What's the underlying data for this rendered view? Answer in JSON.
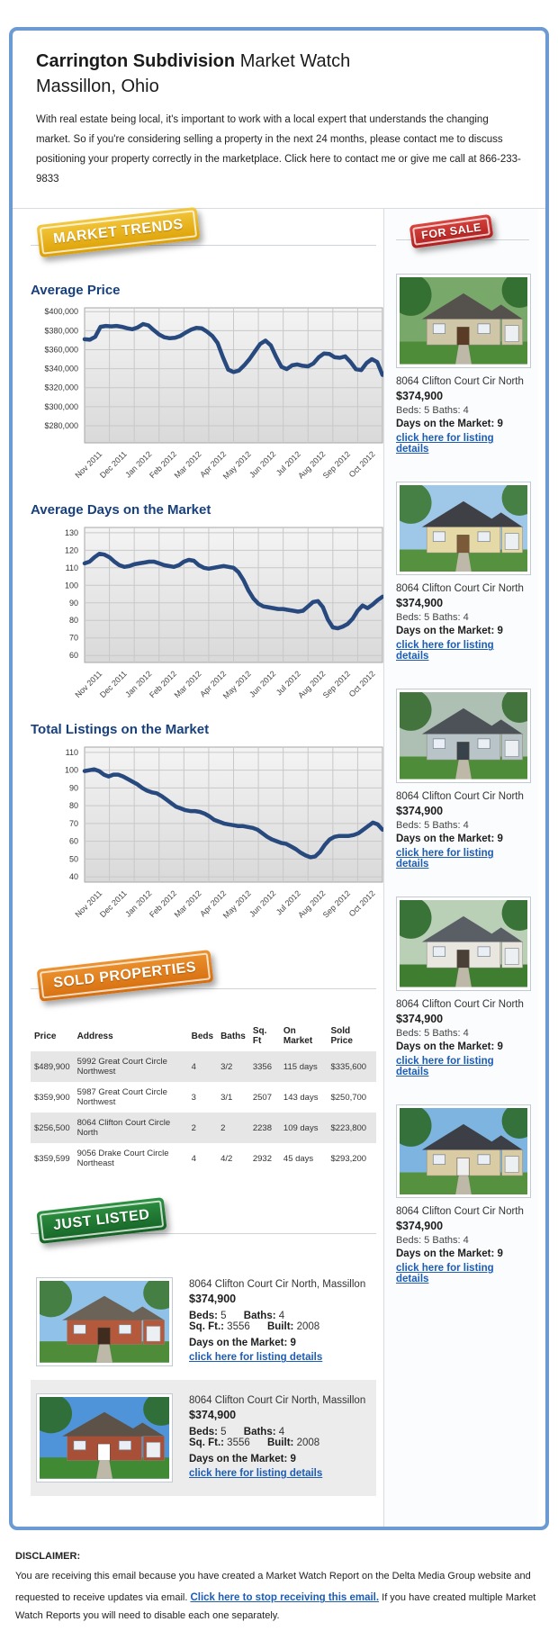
{
  "header": {
    "title_bold": "Carrington Subdivision",
    "title_rest": "Market Watch",
    "subtitle": "Massillon, Ohio",
    "intro": "With real estate being local, it's important to work with a local expert that understands the changing market. So if you're considering selling a property in the next 24 months, please contact me to discuss positioning your property correctly in the marketplace. Click here to contact me or give me call at 866-233-9833"
  },
  "badges": {
    "market_trends": "MARKET TRENDS",
    "for_sale": "FOR SALE",
    "sold_properties": "SOLD PROPERTIES",
    "just_listed": "JUST LISTED"
  },
  "colors": {
    "card_border": "#6b9bd2",
    "chart_line": "#27497e",
    "heading_blue": "#17407c",
    "link_blue": "#1d5db4",
    "badge_gold": "#e2a808",
    "badge_red": "#bb2525",
    "badge_orange": "#dd7a14",
    "badge_green": "#1d7431"
  },
  "chart_data": [
    {
      "type": "line",
      "title": "Average Price",
      "xlabel": "",
      "ylabel": "",
      "legend": "none",
      "grid": true,
      "x_labels": [
        "Nov 2011",
        "Dec 2011",
        "Jan 2012",
        "Feb 2012",
        "Mar 2012",
        "Apr 2012",
        "May 2012",
        "Jun 2012",
        "Jul 2012",
        "Aug 2012",
        "Sep 2012",
        "Oct 2012"
      ],
      "ylim": [
        262000,
        404000
      ],
      "yticks": [
        {
          "v": 400000,
          "label": "$400,000"
        },
        {
          "v": 380000,
          "label": "$380,000"
        },
        {
          "v": 360000,
          "label": "$360,000"
        },
        {
          "v": 340000,
          "label": "$340,000"
        },
        {
          "v": 320000,
          "label": "$320,000"
        },
        {
          "v": 300000,
          "label": "$300,000"
        },
        {
          "v": 280000,
          "label": "$280,000"
        }
      ],
      "values": [
        371000,
        370500,
        373500,
        384000,
        385000,
        384500,
        385000,
        384000,
        382500,
        381500,
        383500,
        387000,
        385500,
        380500,
        376000,
        373000,
        372000,
        372500,
        374500,
        378000,
        381000,
        383000,
        382500,
        379000,
        374500,
        367000,
        352000,
        339000,
        336500,
        338000,
        343500,
        350000,
        358000,
        366000,
        369500,
        364500,
        352500,
        342000,
        339500,
        343500,
        344500,
        343000,
        342500,
        345500,
        352000,
        356000,
        355500,
        352000,
        351500,
        353000,
        347000,
        339500,
        338500,
        346000,
        350000,
        347000,
        333500
      ]
    },
    {
      "type": "line",
      "title": "Average Days on the Market",
      "xlabel": "",
      "ylabel": "",
      "legend": "none",
      "grid": true,
      "x_labels": [
        "Nov 2011",
        "Dec 2011",
        "Jan 2012",
        "Feb 2012",
        "Mar 2012",
        "Apr 2012",
        "May 2012",
        "Jun 2012",
        "Jul 2012",
        "Aug 2012",
        "Sep 2012",
        "Oct 2012"
      ],
      "ylim": [
        56,
        133
      ],
      "yticks": [
        {
          "v": 130,
          "label": "130"
        },
        {
          "v": 120,
          "label": "120"
        },
        {
          "v": 110,
          "label": "110"
        },
        {
          "v": 100,
          "label": "100"
        },
        {
          "v": 90,
          "label": "90"
        },
        {
          "v": 80,
          "label": "80"
        },
        {
          "v": 70,
          "label": "70"
        },
        {
          "v": 60,
          "label": "60"
        }
      ],
      "values": [
        112.5,
        113.5,
        116,
        118,
        117.5,
        116,
        113.5,
        111.5,
        110.5,
        111,
        112,
        112.5,
        113,
        113.5,
        113.5,
        112.5,
        111.5,
        111,
        110.5,
        111.5,
        113.5,
        114.5,
        114,
        111.5,
        110,
        109.5,
        110,
        110.5,
        111,
        110.5,
        110,
        107.5,
        103,
        97,
        92.5,
        89.5,
        88,
        87.5,
        87,
        86.5,
        86.5,
        86,
        85.5,
        85,
        85.5,
        88,
        90.5,
        91,
        87.5,
        80.5,
        76,
        75.5,
        76.5,
        78,
        81,
        85.5,
        88.5,
        87,
        89,
        91.5,
        93.5
      ]
    },
    {
      "type": "line",
      "title": "Total Listings on the Market",
      "xlabel": "",
      "ylabel": "",
      "legend": "none",
      "grid": true,
      "x_labels": [
        "Nov 2011",
        "Dec 2011",
        "Jan 2012",
        "Feb 2012",
        "Mar 2012",
        "Apr 2012",
        "May 2012",
        "Jun 2012",
        "Jul 2012",
        "Aug 2012",
        "Sep 2012",
        "Oct 2012"
      ],
      "ylim": [
        37,
        113
      ],
      "yticks": [
        {
          "v": 110,
          "label": "110"
        },
        {
          "v": 100,
          "label": "100"
        },
        {
          "v": 90,
          "label": "90"
        },
        {
          "v": 80,
          "label": "80"
        },
        {
          "v": 70,
          "label": "70"
        },
        {
          "v": 60,
          "label": "60"
        },
        {
          "v": 50,
          "label": "50"
        },
        {
          "v": 40,
          "label": "40"
        }
      ],
      "values": [
        99.5,
        100,
        100.5,
        99.5,
        97.5,
        96.5,
        97.5,
        97.5,
        96.5,
        95,
        93.5,
        92,
        90,
        88.5,
        87.5,
        87,
        85.5,
        83.5,
        81.5,
        79.5,
        78.5,
        77.5,
        77,
        77,
        76.5,
        75.5,
        74,
        72,
        71,
        70,
        69.5,
        69,
        68.5,
        68.5,
        68,
        67.5,
        66.5,
        64.5,
        62.5,
        61,
        60,
        59,
        58.5,
        57,
        55.5,
        53.5,
        52,
        51,
        51.5,
        54,
        58,
        61,
        62.5,
        63,
        63,
        63,
        63.5,
        64.5,
        66.5,
        68.5,
        70.5,
        69.5,
        66.5
      ]
    }
  ],
  "for_sale": {
    "listings": [
      {
        "address": "8064 Clifton Court Cir North",
        "price": "$374,900",
        "beds_baths": "Beds: 5 Baths: 4",
        "days": "Days on the Market: 9",
        "link": "click here for listing details",
        "photo": {
          "sky": "#79a86b",
          "tree": "#2f6b2c",
          "grass": "#4e8c3a",
          "wall": "#cfc6a8",
          "roof": "#55524e",
          "door": "#5a3b26"
        }
      },
      {
        "address": "8064 Clifton Court Cir North",
        "price": "$374,900",
        "beds_baths": "Beds: 5 Baths: 4",
        "days": "Days on the Market: 9",
        "link": "click here for listing details",
        "photo": {
          "sky": "#9ec7e8",
          "tree": "#3f7a35",
          "grass": "#55913f",
          "wall": "#e6d9a8",
          "roof": "#3f3f46",
          "door": "#7a5a38"
        }
      },
      {
        "address": "8064 Clifton Court Cir North",
        "price": "$374,900",
        "beds_baths": "Beds: 5 Baths: 4",
        "days": "Days on the Market: 9",
        "link": "click here for listing details",
        "photo": {
          "sky": "#aebfb4",
          "tree": "#3a6e33",
          "grass": "#4e8c3a",
          "wall": "#b8c4c8",
          "roof": "#4c5258",
          "door": "#37424a"
        }
      },
      {
        "address": "8064 Clifton Court Cir North",
        "price": "$374,900",
        "beds_baths": "Beds: 5 Baths: 4",
        "days": "Days on the Market: 9",
        "link": "click here for listing details",
        "photo": {
          "sky": "#b9cfb6",
          "tree": "#2f6b2c",
          "grass": "#3f7d31",
          "wall": "#e8e6df",
          "roof": "#5a5f66",
          "door": "#4a4038"
        }
      },
      {
        "address": "8064 Clifton Court Cir North",
        "price": "$374,900",
        "beds_baths": "Beds: 5 Baths: 4",
        "days": "Days on the Market: 9",
        "link": "click here for listing details",
        "photo": {
          "sky": "#7db4e0",
          "tree": "#2f6b2c",
          "grass": "#55913f",
          "wall": "#d9cba4",
          "roof": "#3c3f45",
          "door": "#efefef"
        }
      }
    ]
  },
  "sold_table": {
    "headers": [
      "Price",
      "Address",
      "Beds",
      "Baths",
      "Sq. Ft",
      "On Market",
      "Sold Price"
    ],
    "rows": [
      [
        "$489,900",
        "5992 Great Court Circle Northwest",
        "4",
        "3/2",
        "3356",
        "115 days",
        "$335,600"
      ],
      [
        "$359,900",
        "5987 Great Court Circle Northwest",
        "3",
        "3/1",
        "2507",
        "143 days",
        "$250,700"
      ],
      [
        "$256,500",
        "8064 Clifton Court Circle North",
        "2",
        "2",
        "2238",
        "109 days",
        "$223,800"
      ],
      [
        "$359,599",
        "9056 Drake Court Circle Northeast",
        "4",
        "4/2",
        "2932",
        "45 days",
        "$293,200"
      ]
    ]
  },
  "just_listed": {
    "listings": [
      {
        "address": "8064 Clifton Court Cir North, Massillon",
        "price": "$374,900",
        "beds_label": "Beds:",
        "beds": "5",
        "baths_label": "Baths:",
        "baths": "4",
        "sqft_label": "Sq. Ft.:",
        "sqft": "3556",
        "built_label": "Built:",
        "built": "2008",
        "days": "Days on the Market: 9",
        "link": "click here for listing details",
        "photo": {
          "sky": "#8fc1e9",
          "tree": "#3f7a35",
          "grass": "#4e8c3a",
          "wall": "#b5593c",
          "roof": "#6b6258",
          "door": "#3f2c1e"
        }
      },
      {
        "address": "8064 Clifton Court Cir North, Massillon",
        "price": "$374,900",
        "beds_label": "Beds:",
        "beds": "5",
        "baths_label": "Baths:",
        "baths": "4",
        "sqft_label": "Sq. Ft.:",
        "sqft": "3556",
        "built_label": "Built:",
        "built": "2008",
        "days": "Days on the Market: 9",
        "link": "click here for listing details",
        "photo": {
          "sky": "#4f93d8",
          "tree": "#2f6b2c",
          "grass": "#3f8a33",
          "wall": "#a84f38",
          "roof": "#5d5248",
          "door": "#ffffff"
        }
      }
    ]
  },
  "disclaimer": {
    "heading": "DISCLAIMER:",
    "text_before": "You are receiving this email because you have created a Market Watch Report on the Delta Media Group website and requested to receive updates via email. ",
    "link": "Click here to stop receiving this email.",
    "text_after": " If you have created multiple Market Watch Reports you will need to disable each one separately."
  }
}
